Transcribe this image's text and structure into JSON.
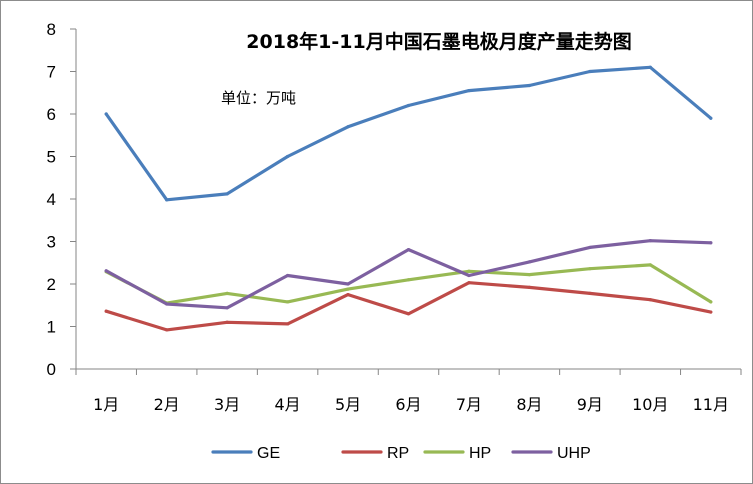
{
  "chart_data": {
    "type": "line",
    "title": "2018年1-11月中国石墨电极月度产量走势图",
    "unit_label": "单位：万吨",
    "categories": [
      "1月",
      "2月",
      "3月",
      "4月",
      "5月",
      "6月",
      "7月",
      "8月",
      "9月",
      "10月",
      "11月"
    ],
    "ylim": [
      0,
      8
    ],
    "yticks": [
      "0",
      "1",
      "2",
      "3",
      "4",
      "5",
      "6",
      "7",
      "8"
    ],
    "grid": false,
    "legend_position": "bottom",
    "series": [
      {
        "name": "GE",
        "color": "#4a7ebb",
        "values": [
          6.0,
          3.98,
          4.12,
          5.0,
          5.7,
          6.2,
          6.55,
          6.67,
          7.0,
          7.1,
          5.9
        ]
      },
      {
        "name": "RP",
        "color": "#be4b48",
        "values": [
          1.36,
          0.92,
          1.1,
          1.06,
          1.75,
          1.3,
          2.03,
          1.92,
          1.78,
          1.63,
          1.34
        ]
      },
      {
        "name": "HP",
        "color": "#98b954",
        "values": [
          2.29,
          1.55,
          1.78,
          1.58,
          1.88,
          2.1,
          2.3,
          2.22,
          2.36,
          2.45,
          1.58
        ]
      },
      {
        "name": "UHP",
        "color": "#7d60a0",
        "values": [
          2.31,
          1.53,
          1.44,
          2.2,
          2.0,
          2.81,
          2.2,
          2.52,
          2.86,
          3.02,
          2.97
        ]
      }
    ]
  }
}
